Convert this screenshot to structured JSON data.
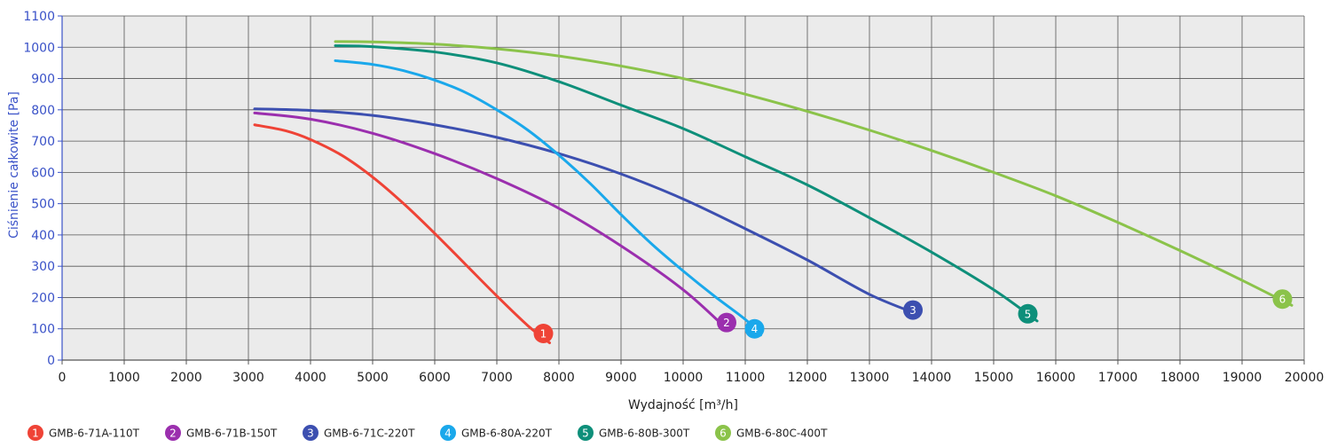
{
  "chart_data": {
    "type": "line",
    "xlabel": "Wydajność [m³/h]",
    "ylabel": "Ciśnienie całkowite [Pa]",
    "xlim": [
      0,
      20000
    ],
    "ylim": [
      0,
      1100
    ],
    "x_ticks": [
      0,
      1000,
      2000,
      3000,
      4000,
      5000,
      6000,
      7000,
      8000,
      9000,
      10000,
      11000,
      12000,
      13000,
      14000,
      15000,
      16000,
      17000,
      18000,
      19000,
      20000
    ],
    "y_ticks": [
      0,
      100,
      200,
      300,
      400,
      500,
      600,
      700,
      800,
      900,
      1000,
      1100
    ],
    "grid": true,
    "legend_position": "bottom",
    "series": [
      {
        "name": "GMB-6-71A-110T",
        "badge": "1",
        "color": "#ef4336",
        "x": [
          3100,
          3600,
          4000,
          4500,
          5000,
          5500,
          6000,
          6500,
          7000,
          7500,
          7850
        ],
        "y": [
          752,
          733,
          705,
          655,
          585,
          500,
          405,
          305,
          205,
          110,
          55
        ]
      },
      {
        "name": "GMB-6-71B-150T",
        "badge": "2",
        "color": "#9b2fae",
        "x": [
          3100,
          4000,
          5000,
          6000,
          7000,
          8000,
          9000,
          10000,
          10700
        ],
        "y": [
          790,
          770,
          725,
          660,
          580,
          485,
          365,
          225,
          100
        ]
      },
      {
        "name": "GMB-6-71C-220T",
        "badge": "3",
        "color": "#3c4fb0",
        "x": [
          3100,
          4000,
          5000,
          6000,
          7000,
          8000,
          9000,
          10000,
          11000,
          12000,
          13000,
          13800
        ],
        "y": [
          803,
          798,
          782,
          752,
          712,
          660,
          595,
          515,
          420,
          320,
          210,
          145
        ]
      },
      {
        "name": "GMB-6-80A-220T",
        "badge": "4",
        "color": "#1aa8eb",
        "x": [
          4400,
          5000,
          5500,
          6000,
          6500,
          7000,
          7500,
          8000,
          8500,
          9000,
          9500,
          10000,
          10500,
          11000,
          11250
        ],
        "y": [
          957,
          945,
          925,
          895,
          855,
          800,
          735,
          655,
          565,
          465,
          370,
          285,
          205,
          130,
          80
        ]
      },
      {
        "name": "GMB-6-80B-300T",
        "badge": "5",
        "color": "#0e8f7a",
        "x": [
          4400,
          5000,
          6000,
          7000,
          8000,
          9000,
          10000,
          11000,
          12000,
          13000,
          14000,
          15000,
          15700
        ],
        "y": [
          1005,
          1002,
          985,
          950,
          890,
          815,
          740,
          650,
          560,
          455,
          345,
          225,
          125
        ]
      },
      {
        "name": "GMB-6-80C-400T",
        "badge": "6",
        "color": "#8bc34a",
        "x": [
          4400,
          5000,
          6000,
          7000,
          8000,
          9000,
          10000,
          11000,
          12000,
          13000,
          14000,
          15000,
          16000,
          17000,
          18000,
          19000,
          19800
        ],
        "y": [
          1018,
          1017,
          1010,
          995,
          972,
          940,
          900,
          850,
          795,
          735,
          670,
          600,
          525,
          440,
          350,
          255,
          175
        ]
      }
    ],
    "markers": [
      {
        "badge": "1",
        "x": 7750,
        "y": 85
      },
      {
        "badge": "2",
        "x": 10700,
        "y": 120
      },
      {
        "badge": "4",
        "x": 11150,
        "y": 100
      },
      {
        "badge": "3",
        "x": 13700,
        "y": 160
      },
      {
        "badge": "5",
        "x": 15550,
        "y": 148
      },
      {
        "badge": "6",
        "x": 19650,
        "y": 195
      }
    ]
  }
}
